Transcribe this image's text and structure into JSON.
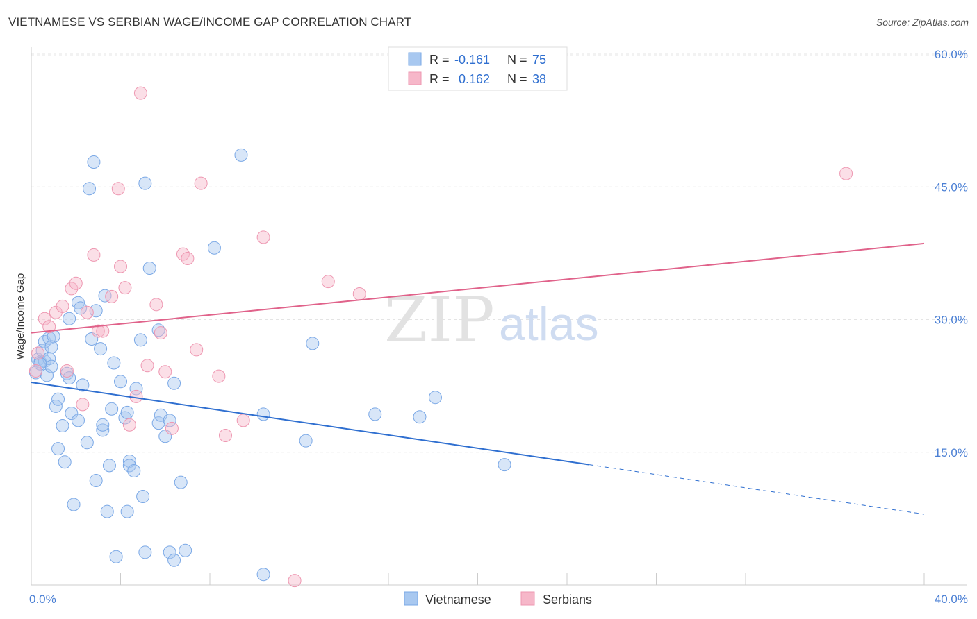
{
  "header": {
    "title": "VIETNAMESE VS SERBIAN WAGE/INCOME GAP CORRELATION CHART",
    "source": "Source: ZipAtlas.com"
  },
  "watermark": {
    "zip": "ZIP",
    "atlas": "atlas"
  },
  "legend": {
    "rows": [
      {
        "r_label": "R =",
        "r_value": "-0.161",
        "n_label": "N =",
        "n_value": "75",
        "color": "#a8c8f0"
      },
      {
        "r_label": "R =",
        "r_value": "0.162",
        "n_label": "N =",
        "n_value": "38",
        "color": "#f6b7c9"
      }
    ]
  },
  "bottom_legend": {
    "items": [
      {
        "label": "Vietnamese",
        "color": "#a8c8f0"
      },
      {
        "label": "Serbians",
        "color": "#f6b7c9"
      }
    ]
  },
  "chart_data": {
    "type": "scatter",
    "title": "VIETNAMESE VS SERBIAN WAGE/INCOME GAP CORRELATION CHART",
    "xlabel": "",
    "ylabel": "Wage/Income Gap",
    "xlim": [
      0,
      40
    ],
    "ylim": [
      0,
      60
    ],
    "x_tick_labels": [
      "0.0%",
      "40.0%"
    ],
    "y_ticks": [
      15,
      30,
      45,
      60
    ],
    "y_tick_labels": [
      "15.0%",
      "30.0%",
      "45.0%",
      "60.0%"
    ],
    "grid": true,
    "series": [
      {
        "name": "Vietnamese",
        "color": "#a8c8f0",
        "stroke": "#7aa8e6",
        "r": -0.161,
        "n": 75,
        "trend": {
          "x0": 0,
          "y0": 22.9,
          "x1": 25,
          "y1": 13.6,
          "dash_to_x": 40,
          "dash_to_y": 8.0,
          "color": "#2f6fd0"
        },
        "points": [
          [
            0.2,
            24.0
          ],
          [
            0.3,
            25.5
          ],
          [
            0.4,
            25.2
          ],
          [
            0.5,
            26.5
          ],
          [
            0.6,
            25.3
          ],
          [
            0.6,
            27.5
          ],
          [
            0.7,
            23.7
          ],
          [
            0.8,
            25.6
          ],
          [
            0.8,
            27.9
          ],
          [
            0.9,
            24.7
          ],
          [
            1.0,
            28.1
          ],
          [
            1.1,
            20.2
          ],
          [
            1.2,
            15.4
          ],
          [
            1.2,
            21.0
          ],
          [
            1.4,
            18.0
          ],
          [
            1.5,
            13.9
          ],
          [
            1.6,
            23.9
          ],
          [
            1.7,
            23.4
          ],
          [
            1.7,
            30.1
          ],
          [
            1.8,
            19.4
          ],
          [
            1.9,
            9.1
          ],
          [
            2.1,
            18.6
          ],
          [
            2.1,
            31.9
          ],
          [
            2.2,
            31.3
          ],
          [
            2.3,
            22.6
          ],
          [
            2.5,
            16.1
          ],
          [
            2.6,
            44.8
          ],
          [
            2.7,
            27.8
          ],
          [
            2.8,
            47.8
          ],
          [
            2.9,
            11.8
          ],
          [
            2.9,
            31.0
          ],
          [
            3.1,
            26.7
          ],
          [
            3.2,
            17.5
          ],
          [
            3.2,
            18.1
          ],
          [
            3.3,
            32.7
          ],
          [
            3.4,
            8.3
          ],
          [
            3.5,
            13.5
          ],
          [
            3.6,
            19.9
          ],
          [
            3.7,
            25.1
          ],
          [
            3.8,
            3.2
          ],
          [
            4.0,
            23.0
          ],
          [
            4.2,
            18.9
          ],
          [
            4.3,
            8.3
          ],
          [
            4.3,
            19.5
          ],
          [
            4.4,
            14.0
          ],
          [
            4.4,
            13.5
          ],
          [
            4.6,
            12.9
          ],
          [
            4.7,
            22.2
          ],
          [
            4.9,
            27.7
          ],
          [
            5.0,
            10.0
          ],
          [
            5.1,
            45.4
          ],
          [
            5.1,
            3.7
          ],
          [
            5.3,
            35.8
          ],
          [
            5.7,
            28.8
          ],
          [
            5.7,
            18.3
          ],
          [
            5.8,
            19.2
          ],
          [
            6.0,
            16.8
          ],
          [
            6.2,
            18.6
          ],
          [
            6.2,
            3.7
          ],
          [
            6.4,
            2.8
          ],
          [
            6.4,
            22.8
          ],
          [
            6.7,
            11.6
          ],
          [
            6.9,
            3.9
          ],
          [
            8.2,
            38.1
          ],
          [
            9.4,
            48.6
          ],
          [
            10.4,
            1.2
          ],
          [
            10.4,
            19.3
          ],
          [
            12.3,
            16.3
          ],
          [
            12.6,
            27.3
          ],
          [
            15.4,
            19.3
          ],
          [
            17.4,
            19.0
          ],
          [
            18.1,
            21.2
          ],
          [
            21.2,
            13.6
          ],
          [
            0.4,
            25.0
          ],
          [
            0.9,
            26.9
          ]
        ]
      },
      {
        "name": "Serbians",
        "color": "#f6b7c9",
        "stroke": "#ee97b1",
        "r": 0.162,
        "n": 38,
        "trend": {
          "x0": 0,
          "y0": 28.5,
          "x1": 40,
          "y1": 38.6,
          "color": "#e0628a"
        },
        "points": [
          [
            0.2,
            24.2
          ],
          [
            0.3,
            26.2
          ],
          [
            0.6,
            30.1
          ],
          [
            0.8,
            29.2
          ],
          [
            1.1,
            30.8
          ],
          [
            1.4,
            31.5
          ],
          [
            1.6,
            24.2
          ],
          [
            1.8,
            33.5
          ],
          [
            2.0,
            34.1
          ],
          [
            2.3,
            20.4
          ],
          [
            2.5,
            30.8
          ],
          [
            2.8,
            37.3
          ],
          [
            3.0,
            28.7
          ],
          [
            3.2,
            28.7
          ],
          [
            3.6,
            32.6
          ],
          [
            3.9,
            44.8
          ],
          [
            4.0,
            36.0
          ],
          [
            4.2,
            33.6
          ],
          [
            4.4,
            18.1
          ],
          [
            4.7,
            21.3
          ],
          [
            4.9,
            55.6
          ],
          [
            5.2,
            24.8
          ],
          [
            5.6,
            31.7
          ],
          [
            5.8,
            28.5
          ],
          [
            6.0,
            24.1
          ],
          [
            6.3,
            17.7
          ],
          [
            6.8,
            37.4
          ],
          [
            7.0,
            36.9
          ],
          [
            7.4,
            26.6
          ],
          [
            7.6,
            45.4
          ],
          [
            8.4,
            23.6
          ],
          [
            8.7,
            16.9
          ],
          [
            9.5,
            18.6
          ],
          [
            10.4,
            39.3
          ],
          [
            11.8,
            0.5
          ],
          [
            13.3,
            34.3
          ],
          [
            14.7,
            32.9
          ],
          [
            36.5,
            46.5
          ]
        ]
      }
    ]
  }
}
